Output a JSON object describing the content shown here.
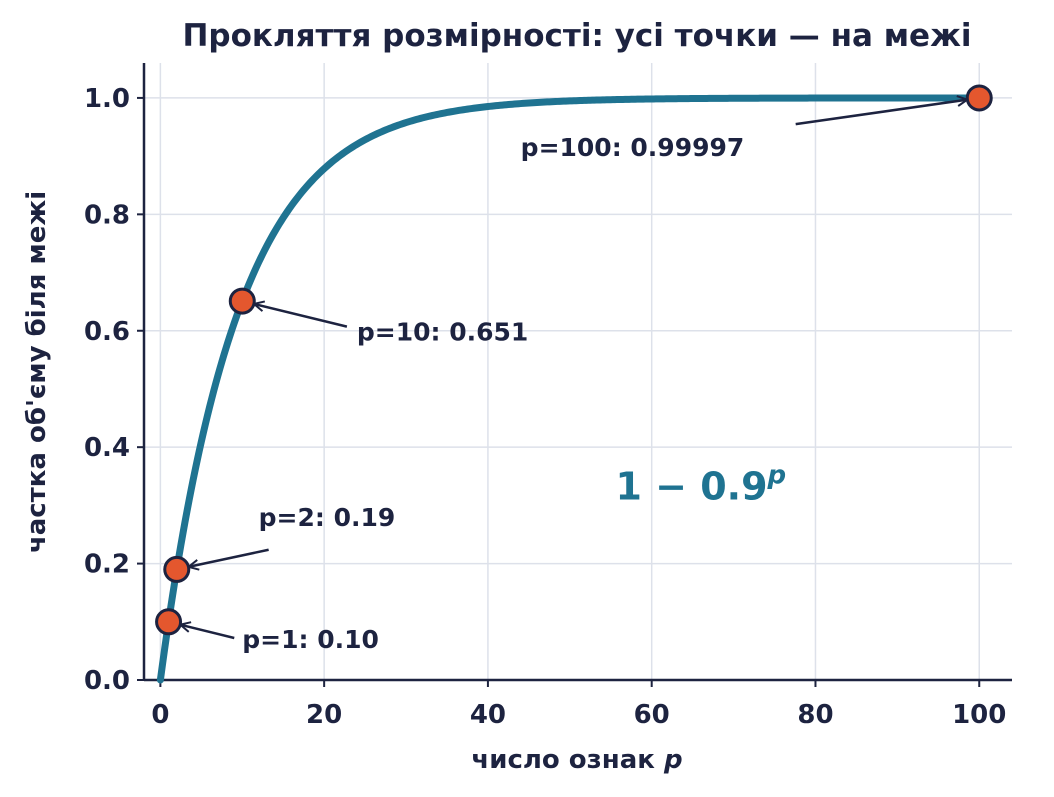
{
  "chart_data": {
    "type": "line",
    "title": "Прокляття розмірності: усі точки — на межі",
    "xlabel": "число ознак",
    "xlabel_var": "p",
    "ylabel": "частка об'єму біля межі",
    "xlim": [
      -2,
      104
    ],
    "ylim": [
      0,
      1.06
    ],
    "x_ticks": [
      0,
      20,
      40,
      60,
      80,
      100
    ],
    "x_tick_labels": [
      "0",
      "20",
      "40",
      "60",
      "80",
      "100"
    ],
    "y_ticks": [
      0,
      0.2,
      0.4,
      0.6,
      0.8,
      1.0
    ],
    "y_tick_labels": [
      "0.0",
      "0.2",
      "0.4",
      "0.6",
      "0.8",
      "1.0"
    ],
    "grid": true,
    "curve": {
      "function": "1 - 0.9^p",
      "p_min": 0,
      "p_max": 100,
      "color": "#1f7391"
    },
    "formula": {
      "base": "1 − 0.9",
      "exponent": "p",
      "x": 66,
      "y": 0.31,
      "color": "#1f7391"
    },
    "points": [
      {
        "x": 1,
        "y": 0.1,
        "label": "p=1: 0.10",
        "label_x": 10,
        "label_y": 0.055
      },
      {
        "x": 2,
        "y": 0.19,
        "label": "p=2: 0.19",
        "label_x": 12,
        "label_y": 0.265
      },
      {
        "x": 10,
        "y": 0.651,
        "label": "p=10: 0.651",
        "label_x": 24,
        "label_y": 0.583
      },
      {
        "x": 100,
        "y": 0.99997,
        "label": "p=100: 0.99997",
        "label_x": 44,
        "label_y": 0.9
      }
    ],
    "point_color": "#e4572e",
    "point_edge_color": "#1d2340",
    "axis_color": "#1d2340",
    "grid_color": "#dde1ea"
  }
}
